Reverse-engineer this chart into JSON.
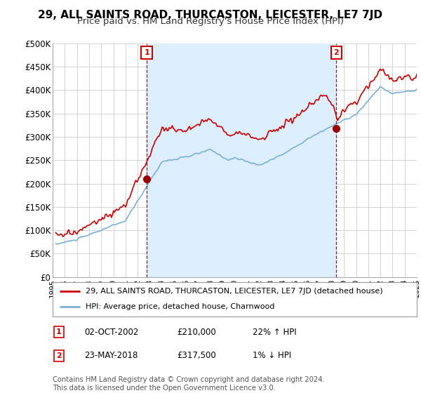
{
  "title": "29, ALL SAINTS ROAD, THURCASTON, LEICESTER, LE7 7JD",
  "subtitle": "Price paid vs. HM Land Registry's House Price Index (HPI)",
  "ylabel_ticks": [
    "£0",
    "£50K",
    "£100K",
    "£150K",
    "£200K",
    "£250K",
    "£300K",
    "£350K",
    "£400K",
    "£450K",
    "£500K"
  ],
  "ytick_vals": [
    0,
    50000,
    100000,
    150000,
    200000,
    250000,
    300000,
    350000,
    400000,
    450000,
    500000
  ],
  "ylim": [
    0,
    500000
  ],
  "xlim_start": 1995.25,
  "xlim_end": 2025.0,
  "red_line_color": "#cc0000",
  "blue_line_color": "#7ab0d4",
  "blue_fill_color": "#ddeeff",
  "marker1_date": 2002.75,
  "marker1_price": 210000,
  "marker1_label": "1",
  "marker2_date": 2018.38,
  "marker2_price": 317500,
  "marker2_label": "2",
  "legend_label_red": "29, ALL SAINTS ROAD, THURCASTON, LEICESTER, LE7 7JD (detached house)",
  "legend_label_blue": "HPI: Average price, detached house, Charnwood",
  "footer": "Contains HM Land Registry data © Crown copyright and database right 2024.\nThis data is licensed under the Open Government Licence v3.0.",
  "background_color": "#ffffff",
  "plot_bg_color": "#ffffff",
  "grid_color": "#cccccc",
  "title_fontsize": 11,
  "subtitle_fontsize": 9.5
}
